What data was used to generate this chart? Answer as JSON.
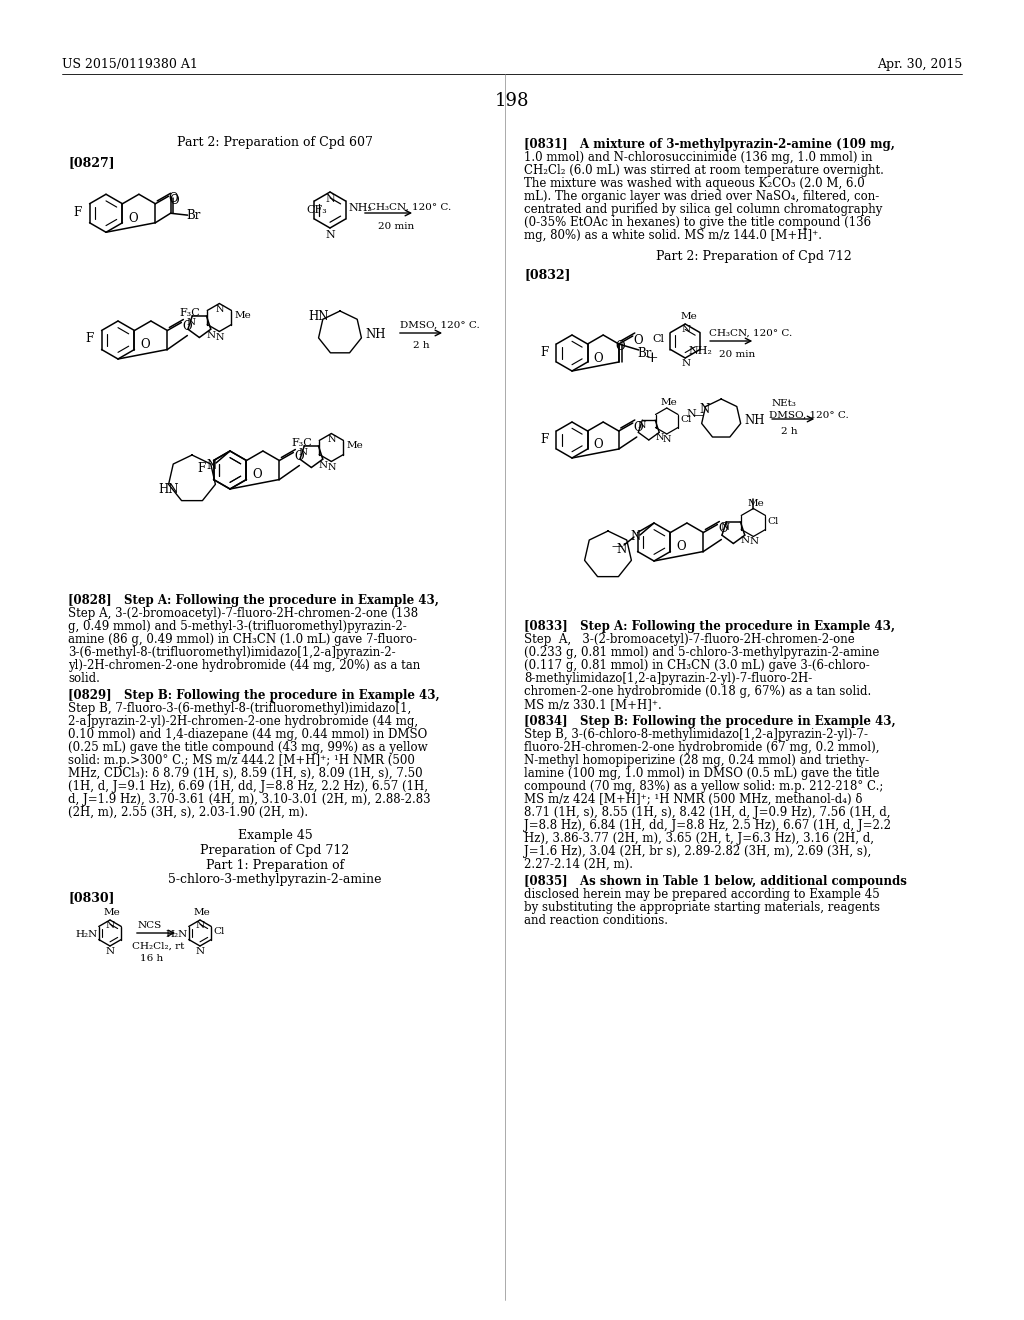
{
  "header_left": "US 2015/0119380 A1",
  "header_right": "Apr. 30, 2015",
  "page_number": "198",
  "bg_color": "#ffffff",
  "left_col_title": "Part 2: Preparation of Cpd 607",
  "tag_0827": "[0827]",
  "tag_0830": "[0830]",
  "tag_0832": "[0832]",
  "right_part2_title": "Part 2: Preparation of Cpd 712",
  "example45": "Example 45",
  "example45_sub": "Preparation of Cpd 712",
  "part1_title": "Part 1: Preparation of",
  "part1_sub": "5-chloro-3-methylpyrazin-2-amine",
  "para_0831": [
    "[0831]   A mixture of 3-methylpyrazin-2-amine (109 mg,",
    "1.0 mmol) and N-chlorosuccinimide (136 mg, 1.0 mmol) in",
    "CH₂Cl₂ (6.0 mL) was stirred at room temperature overnight.",
    "The mixture was washed with aqueous K₂CO₃ (2.0 M, 6.0",
    "mL). The organic layer was dried over NaSO₄, filtered, con-",
    "centrated and purified by silica gel column chromatography",
    "(0-35% EtOAc in hexanes) to give the title compound (136",
    "mg, 80%) as a white solid. MS m/z 144.0 [M+H]⁺."
  ],
  "para_0828": [
    "[0828]   Step A: Following the procedure in Example 43,",
    "Step A, 3-(2-bromoacetyl)-7-fluoro-2H-chromen-2-one (138",
    "g, 0.49 mmol) and 5-methyl-3-(trifluoromethyl)pyrazin-2-",
    "amine (86 g, 0.49 mmol) in CH₃CN (1.0 mL) gave 7-fluoro-",
    "3-(6-methyl-8-(trifluoromethyl)imidazo[1,2-a]pyrazin-2-",
    "yl)-2H-chromen-2-one hydrobromide (44 mg, 20%) as a tan",
    "solid."
  ],
  "para_0829": [
    "[0829]   Step B: Following the procedure in Example 43,",
    "Step B, 7-fluoro-3-(6-methyl-8-(trifluoromethyl)imidazo[1,",
    "2-a]pyrazin-2-yl)-2H-chromen-2-one hydrobromide (44 mg,",
    "0.10 mmol) and 1,4-diazepane (44 mg, 0.44 mmol) in DMSO",
    "(0.25 mL) gave the title compound (43 mg, 99%) as a yellow",
    "solid: m.p.>300° C.; MS m/z 444.2 [M+H]⁺; ¹H NMR (500",
    "MHz, CDCl₃): δ 8.79 (1H, s), 8.59 (1H, s), 8.09 (1H, s), 7.50",
    "(1H, d, J=9.1 Hz), 6.69 (1H, dd, J=8.8 Hz, 2.2 Hz), 6.57 (1H,",
    "d, J=1.9 Hz), 3.70-3.61 (4H, m), 3.10-3.01 (2H, m), 2.88-2.83",
    "(2H, m), 2.55 (3H, s), 2.03-1.90 (2H, m)."
  ],
  "para_0833": [
    "[0833]   Step A: Following the procedure in Example 43,",
    "Step  A,   3-(2-bromoacetyl)-7-fluoro-2H-chromen-2-one",
    "(0.233 g, 0.81 mmol) and 5-chloro-3-methylpyrazin-2-amine",
    "(0.117 g, 0.81 mmol) in CH₃CN (3.0 mL) gave 3-(6-chloro-",
    "8-methylimidazo[1,2-a]pyrazin-2-yl)-7-fluoro-2H-",
    "chromen-2-one hydrobromide (0.18 g, 67%) as a tan solid.",
    "MS m/z 330.1 [M+H]⁺."
  ],
  "para_0834": [
    "[0834]   Step B: Following the procedure in Example 43,",
    "Step B, 3-(6-chloro-8-methylimidazo[1,2-a]pyrazin-2-yl)-7-",
    "fluoro-2H-chromen-2-one hydrobromide (67 mg, 0.2 mmol),",
    "N-methyl homopiperizine (28 mg, 0.24 mmol) and triethy-",
    "lamine (100 mg, 1.0 mmol) in DMSO (0.5 mL) gave the title",
    "compound (70 mg, 83%) as a yellow solid: m.p. 212-218° C.;",
    "MS m/z 424 [M+H]⁺; ¹H NMR (500 MHz, methanol-d₄) δ",
    "8.71 (1H, s), 8.55 (1H, s), 8.42 (1H, d, J=0.9 Hz), 7.56 (1H, d,",
    "J=8.8 Hz), 6.84 (1H, dd, J=8.8 Hz, 2.5 Hz), 6.67 (1H, d, J=2.2",
    "Hz), 3.86-3.77 (2H, m), 3.65 (2H, t, J=6.3 Hz), 3.16 (2H, d,",
    "J=1.6 Hz), 3.04 (2H, br s), 2.89-2.82 (3H, m), 2.69 (3H, s),",
    "2.27-2.14 (2H, m)."
  ],
  "para_0835": [
    "[0835]   As shown in Table 1 below, additional compounds",
    "disclosed herein may be prepared according to Example 45",
    "by substituting the appropriate starting materials, reagents",
    "and reaction conditions."
  ]
}
